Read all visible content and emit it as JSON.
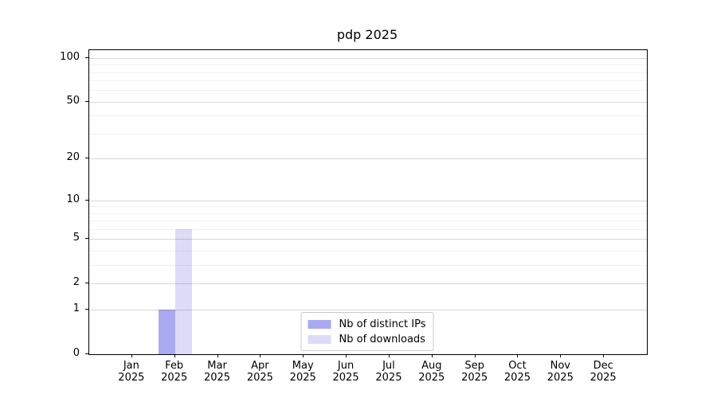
{
  "chart_data": {
    "type": "bar",
    "title": "pdp 2025",
    "categories": [
      "Jan",
      "Feb",
      "Mar",
      "Apr",
      "May",
      "Jun",
      "Jul",
      "Aug",
      "Sep",
      "Oct",
      "Nov",
      "Dec"
    ],
    "category_year": "2025",
    "series": [
      {
        "name": "Nb of distinct IPs",
        "color": "#a9a9f2",
        "values": [
          0,
          1,
          0,
          0,
          0,
          0,
          0,
          0,
          0,
          0,
          0,
          0
        ]
      },
      {
        "name": "Nb of downloads",
        "color": "#dcdcf8",
        "values": [
          0,
          6,
          0,
          0,
          0,
          0,
          0,
          0,
          0,
          0,
          0,
          0
        ]
      }
    ],
    "yscale": "log10(1+x)",
    "ylim": [
      0,
      112
    ],
    "yticks_major": [
      0,
      1,
      2,
      5,
      10,
      20,
      50,
      100
    ],
    "yticks_minor": [
      3,
      4,
      6,
      7,
      8,
      9,
      30,
      40,
      60,
      70,
      80,
      90
    ],
    "grid": true,
    "legend_position": "bottom-center-inside",
    "spine_color": "#000000",
    "background_color": "#ffffff"
  }
}
